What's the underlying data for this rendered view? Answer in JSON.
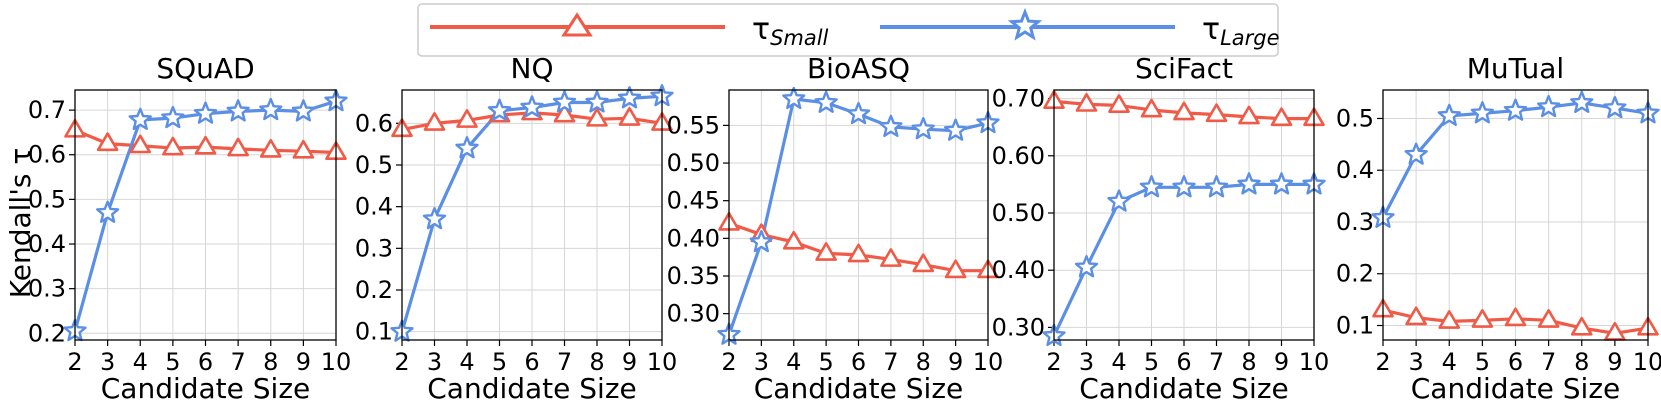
{
  "colors": {
    "small": "#f05a46",
    "large": "#5b8fe6",
    "grid": "#d6d6d6"
  },
  "legend": {
    "small_label": "τ",
    "small_sub": "Small",
    "large_label": "τ",
    "large_sub": "Large"
  },
  "ylabel": "Kendall's τ",
  "chart_data": [
    {
      "type": "line",
      "title": "SQuAD",
      "xlabel": "Candidate Size",
      "x": [
        2,
        3,
        4,
        5,
        6,
        7,
        8,
        9,
        10
      ],
      "xlim": [
        2,
        10
      ],
      "ylim": [
        0.185,
        0.745
      ],
      "yticks": [
        "0.2",
        "0.3",
        "0.4",
        "0.5",
        "0.6",
        "0.7"
      ],
      "series": [
        {
          "name": "τ_Small",
          "values": [
            0.655,
            0.625,
            0.62,
            0.615,
            0.617,
            0.613,
            0.61,
            0.608,
            0.605
          ]
        },
        {
          "name": "τ_Large",
          "values": [
            0.205,
            0.47,
            0.678,
            0.682,
            0.692,
            0.697,
            0.7,
            0.697,
            0.72
          ]
        }
      ]
    },
    {
      "type": "line",
      "title": "NQ",
      "xlabel": "Candidate Size",
      "x": [
        2,
        3,
        4,
        5,
        6,
        7,
        8,
        9,
        10
      ],
      "xlim": [
        2,
        10
      ],
      "ylim": [
        0.08,
        0.68
      ],
      "yticks": [
        "0.1",
        "0.2",
        "0.3",
        "0.4",
        "0.5",
        "0.6"
      ],
      "series": [
        {
          "name": "τ_Small",
          "values": [
            0.585,
            0.6,
            0.607,
            0.62,
            0.625,
            0.62,
            0.61,
            0.612,
            0.6
          ]
        },
        {
          "name": "τ_Large",
          "values": [
            0.1,
            0.37,
            0.54,
            0.63,
            0.638,
            0.65,
            0.65,
            0.66,
            0.665
          ]
        }
      ]
    },
    {
      "type": "line",
      "title": "BioASQ",
      "xlabel": "Candidate Size",
      "x": [
        2,
        3,
        4,
        5,
        6,
        7,
        8,
        9,
        10
      ],
      "xlim": [
        2,
        10
      ],
      "ylim": [
        0.265,
        0.597
      ],
      "yticks": [
        "0.30",
        "0.35",
        "0.40",
        "0.45",
        "0.50",
        "0.55"
      ],
      "series": [
        {
          "name": "τ_Small",
          "values": [
            0.42,
            0.405,
            0.395,
            0.38,
            0.378,
            0.372,
            0.365,
            0.357,
            0.357
          ]
        },
        {
          "name": "τ_Large",
          "values": [
            0.272,
            0.395,
            0.585,
            0.58,
            0.565,
            0.548,
            0.545,
            0.543,
            0.553
          ]
        }
      ]
    },
    {
      "type": "line",
      "title": "SciFact",
      "xlabel": "Candidate Size",
      "x": [
        2,
        3,
        4,
        5,
        6,
        7,
        8,
        9,
        10
      ],
      "xlim": [
        2,
        10
      ],
      "ylim": [
        0.278,
        0.715
      ],
      "yticks": [
        "0.30",
        "0.40",
        "0.50",
        "0.60",
        "0.70"
      ],
      "series": [
        {
          "name": "τ_Small",
          "values": [
            0.695,
            0.69,
            0.688,
            0.68,
            0.675,
            0.672,
            0.668,
            0.665,
            0.665
          ]
        },
        {
          "name": "τ_Large",
          "values": [
            0.285,
            0.405,
            0.52,
            0.545,
            0.545,
            0.545,
            0.55,
            0.55,
            0.55
          ]
        }
      ]
    },
    {
      "type": "line",
      "title": "MuTual",
      "xlabel": "Candidate Size",
      "x": [
        2,
        3,
        4,
        5,
        6,
        7,
        8,
        9,
        10
      ],
      "xlim": [
        2,
        10
      ],
      "ylim": [
        0.072,
        0.555
      ],
      "yticks": [
        "0.1",
        "0.2",
        "0.3",
        "0.4",
        "0.5"
      ],
      "series": [
        {
          "name": "τ_Small",
          "values": [
            0.13,
            0.115,
            0.108,
            0.11,
            0.113,
            0.11,
            0.095,
            0.085,
            0.095
          ]
        },
        {
          "name": "τ_Large",
          "values": [
            0.308,
            0.43,
            0.505,
            0.51,
            0.515,
            0.522,
            0.53,
            0.52,
            0.51
          ]
        }
      ]
    }
  ]
}
